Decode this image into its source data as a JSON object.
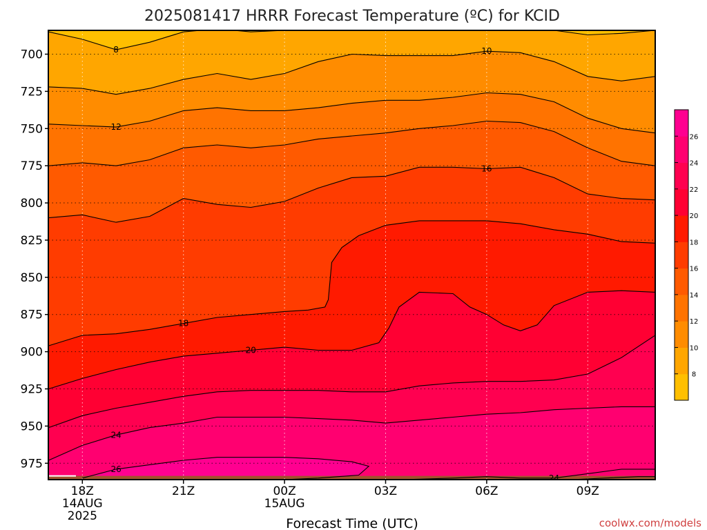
{
  "chart_data": {
    "type": "heatmap",
    "title": "2025081417 HRRR Forecast Temperature (ºC) for KCID",
    "xlabel": "Forecast Time (UTC)",
    "ylabel": "",
    "credit": "coolwx.com/models",
    "x_ticks": [
      {
        "hour": 1,
        "lines": [
          "18Z",
          "14AUG",
          "2025"
        ]
      },
      {
        "hour": 4,
        "lines": [
          "21Z"
        ]
      },
      {
        "hour": 7,
        "lines": [
          "00Z",
          "15AUG"
        ]
      },
      {
        "hour": 10,
        "lines": [
          "03Z"
        ]
      },
      {
        "hour": 13,
        "lines": [
          "06Z"
        ]
      },
      {
        "hour": 16,
        "lines": [
          "09Z"
        ]
      }
    ],
    "xlim": [
      0,
      18
    ],
    "y_ticks": [
      700,
      725,
      750,
      775,
      800,
      825,
      850,
      875,
      900,
      925,
      950,
      975
    ],
    "ylim": [
      985,
      684
    ],
    "y_scale": "pressure (hPa), surface near 986",
    "grid": true,
    "colorbar": {
      "placement": "right",
      "levels": [
        6,
        8,
        10,
        12,
        14,
        16,
        18,
        20,
        22,
        24,
        26,
        28
      ],
      "labels": [
        "8",
        "10",
        "12",
        "14",
        "16",
        "18",
        "20",
        "22",
        "24",
        "26"
      ],
      "colors": [
        "#ffbf00",
        "#ffa600",
        "#ff8c00",
        "#ff7300",
        "#ff5a00",
        "#ff3c00",
        "#ff1a00",
        "#ff0033",
        "#ff0050",
        "#ff0070",
        "#ff0090"
      ]
    },
    "ground_color": "#a0522d",
    "contours": [
      {
        "level": 8,
        "label": "8",
        "label_at": 2,
        "points": [
          [
            0,
            685
          ],
          [
            1,
            690
          ],
          [
            2,
            697
          ],
          [
            3,
            692
          ],
          [
            4,
            685
          ],
          [
            5,
            683
          ],
          [
            6,
            685
          ],
          [
            7,
            684
          ]
        ],
        "closed": false
      },
      {
        "level": 8,
        "label": "",
        "label_at": -1,
        "points": [
          [
            15,
            684
          ],
          [
            16,
            687
          ],
          [
            17,
            686
          ],
          [
            18,
            684
          ]
        ],
        "closed": false
      },
      {
        "level": 10,
        "label": "10",
        "label_at": 13,
        "points": [
          [
            0,
            722
          ],
          [
            1,
            723
          ],
          [
            2,
            727
          ],
          [
            3,
            723
          ],
          [
            4,
            717
          ],
          [
            5,
            713
          ],
          [
            6,
            717
          ],
          [
            7,
            713
          ],
          [
            8,
            705
          ],
          [
            9,
            700
          ],
          [
            10,
            701
          ],
          [
            11,
            701
          ],
          [
            12,
            701
          ],
          [
            13,
            698
          ],
          [
            14,
            699
          ],
          [
            15,
            705
          ],
          [
            16,
            715
          ],
          [
            17,
            718
          ],
          [
            18,
            715
          ]
        ],
        "closed": false
      },
      {
        "level": 12,
        "label": "12",
        "label_at": 2,
        "points": [
          [
            0,
            747
          ],
          [
            1,
            748
          ],
          [
            2,
            749
          ],
          [
            3,
            745
          ],
          [
            4,
            738
          ],
          [
            5,
            736
          ],
          [
            6,
            738
          ],
          [
            7,
            738
          ],
          [
            8,
            736
          ],
          [
            9,
            733
          ],
          [
            10,
            731
          ],
          [
            11,
            731
          ],
          [
            12,
            729
          ],
          [
            13,
            726
          ],
          [
            14,
            727
          ],
          [
            15,
            732
          ],
          [
            16,
            743
          ],
          [
            17,
            750
          ],
          [
            18,
            753
          ]
        ],
        "closed": false
      },
      {
        "level": 14,
        "label": "",
        "label_at": -1,
        "points": [
          [
            0,
            775
          ],
          [
            1,
            773
          ],
          [
            2,
            775
          ],
          [
            3,
            771
          ],
          [
            4,
            763
          ],
          [
            5,
            761
          ],
          [
            6,
            763
          ],
          [
            7,
            761
          ],
          [
            8,
            757
          ],
          [
            9,
            755
          ],
          [
            10,
            753
          ],
          [
            11,
            750
          ],
          [
            12,
            748
          ],
          [
            13,
            745
          ],
          [
            14,
            746
          ],
          [
            15,
            752
          ],
          [
            16,
            763
          ],
          [
            17,
            772
          ],
          [
            18,
            775
          ]
        ],
        "closed": false
      },
      {
        "level": 16,
        "label": "16",
        "label_at": 13,
        "points": [
          [
            0,
            810
          ],
          [
            1,
            808
          ],
          [
            2,
            813
          ],
          [
            3,
            809
          ],
          [
            4,
            797
          ],
          [
            5,
            801
          ],
          [
            6,
            803
          ],
          [
            7,
            799
          ],
          [
            8,
            790
          ],
          [
            9,
            783
          ],
          [
            10,
            782
          ],
          [
            11,
            776
          ],
          [
            12,
            776
          ],
          [
            13,
            777
          ],
          [
            14,
            776
          ],
          [
            15,
            783
          ],
          [
            16,
            794
          ],
          [
            17,
            797
          ],
          [
            18,
            798
          ]
        ],
        "closed": false
      },
      {
        "level": 18,
        "label": "18",
        "label_at": 4,
        "points": [
          [
            0,
            896
          ],
          [
            1,
            889
          ],
          [
            2,
            888
          ],
          [
            3,
            885
          ],
          [
            4,
            881
          ],
          [
            5,
            877
          ],
          [
            6,
            875
          ],
          [
            7,
            873
          ],
          [
            7.7,
            872
          ],
          [
            8.2,
            870
          ],
          [
            8.3,
            865
          ],
          [
            8.4,
            840
          ],
          [
            8.7,
            830
          ],
          [
            9.2,
            822
          ],
          [
            10,
            815
          ],
          [
            11,
            812
          ],
          [
            12,
            812
          ],
          [
            13,
            812
          ],
          [
            14,
            814
          ],
          [
            15,
            818
          ],
          [
            16,
            821
          ],
          [
            17,
            826
          ],
          [
            18,
            827
          ]
        ],
        "closed": false
      },
      {
        "level": 20,
        "label": "20",
        "label_at": 6,
        "points": [
          [
            0,
            925
          ],
          [
            1,
            918
          ],
          [
            2,
            912
          ],
          [
            3,
            907
          ],
          [
            4,
            903
          ],
          [
            5,
            901
          ],
          [
            6,
            899
          ],
          [
            7,
            897
          ],
          [
            8,
            899
          ],
          [
            9,
            899
          ],
          [
            9.8,
            894
          ],
          [
            10.1,
            884
          ],
          [
            10.4,
            870
          ],
          [
            11,
            860
          ],
          [
            12,
            861
          ],
          [
            12.5,
            870
          ],
          [
            13,
            875
          ],
          [
            13.5,
            882
          ],
          [
            14,
            886
          ],
          [
            14.5,
            882
          ],
          [
            15,
            869
          ],
          [
            16,
            860
          ],
          [
            17,
            859
          ],
          [
            18,
            860
          ]
        ],
        "closed": false
      },
      {
        "level": 22,
        "label": "",
        "label_at": -1,
        "points": [
          [
            0,
            951
          ],
          [
            1,
            943
          ],
          [
            2,
            938
          ],
          [
            3,
            934
          ],
          [
            4,
            930
          ],
          [
            5,
            927
          ],
          [
            6,
            926
          ],
          [
            7,
            926
          ],
          [
            8,
            926
          ],
          [
            9,
            927
          ],
          [
            10,
            927
          ],
          [
            11,
            923
          ],
          [
            12,
            921
          ],
          [
            13,
            920
          ],
          [
            14,
            920
          ],
          [
            15,
            919
          ],
          [
            16,
            915
          ],
          [
            17,
            904
          ],
          [
            18,
            889
          ]
        ],
        "closed": false
      },
      {
        "level": 24,
        "label": "24",
        "label_at": 2,
        "points": [
          [
            0,
            973
          ],
          [
            1,
            963
          ],
          [
            2,
            956
          ],
          [
            3,
            951
          ],
          [
            4,
            948
          ],
          [
            5,
            944
          ],
          [
            6,
            944
          ],
          [
            7,
            944
          ],
          [
            8,
            945
          ],
          [
            9,
            946
          ],
          [
            10,
            948
          ],
          [
            11,
            946
          ],
          [
            12,
            944
          ],
          [
            13,
            942
          ],
          [
            14,
            941
          ],
          [
            15,
            939
          ],
          [
            16,
            938
          ],
          [
            17,
            937
          ],
          [
            18,
            937
          ]
        ],
        "closed": false
      },
      {
        "level": 26,
        "label": "26",
        "label_at": 1,
        "points": [
          [
            1,
            985
          ],
          [
            2,
            979
          ],
          [
            3,
            976
          ],
          [
            4,
            973
          ],
          [
            5,
            971
          ],
          [
            6,
            971
          ],
          [
            7,
            971
          ],
          [
            8,
            972
          ],
          [
            9,
            974
          ],
          [
            9.5,
            977
          ],
          [
            9.2,
            983
          ],
          [
            8,
            985
          ],
          [
            7,
            986
          ]
        ],
        "closed": false
      },
      {
        "level": 24,
        "label": "24",
        "label_at": 4,
        "points": [
          [
            10.5,
            986
          ],
          [
            12,
            985
          ],
          [
            13,
            984
          ],
          [
            14,
            985
          ],
          [
            15,
            985
          ],
          [
            16,
            982
          ],
          [
            17,
            979
          ],
          [
            18,
            979
          ]
        ],
        "closed": false
      },
      {
        "level": 22,
        "label": "",
        "label_at": -1,
        "points": [
          [
            15.5,
            986
          ],
          [
            16.5,
            985
          ],
          [
            17.5,
            984
          ],
          [
            18,
            984
          ]
        ],
        "closed": false
      }
    ]
  }
}
